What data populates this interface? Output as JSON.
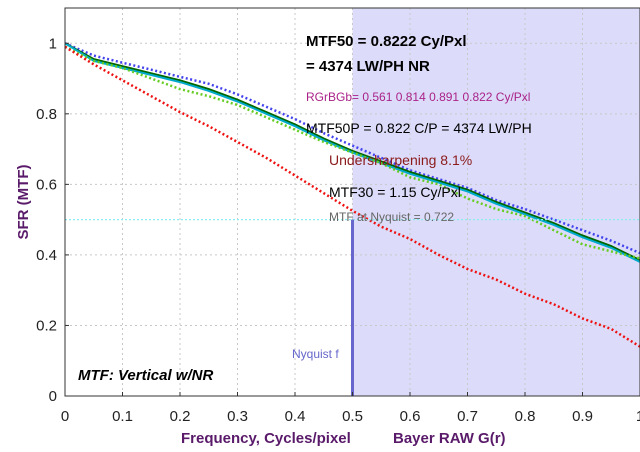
{
  "chart_data": {
    "type": "line",
    "xlabel": "Frequency, Cycles/pixel",
    "xlabel_suffix": "Bayer RAW G(r)",
    "ylabel": "SFR (MTF)",
    "xlim": [
      0,
      1
    ],
    "ylim": [
      0,
      1.1
    ],
    "grid": true,
    "x_ticks": [
      "0",
      "0.1",
      "0.2",
      "0.3",
      "0.4",
      "0.5",
      "0.6",
      "0.7",
      "0.8",
      "0.9",
      "1"
    ],
    "x_tick_values": [
      0,
      0.1,
      0.2,
      0.3,
      0.4,
      0.5,
      0.6,
      0.7,
      0.8,
      0.9,
      1.0
    ],
    "y_ticks": [
      "0",
      "0.2",
      "0.4",
      "0.6",
      "0.8",
      "1"
    ],
    "y_tick_values": [
      0,
      0.2,
      0.4,
      0.6,
      0.8,
      1.0
    ],
    "x": [
      0,
      0.05,
      0.1,
      0.15,
      0.2,
      0.25,
      0.3,
      0.35,
      0.4,
      0.45,
      0.5,
      0.55,
      0.6,
      0.65,
      0.7,
      0.75,
      0.8,
      0.85,
      0.9,
      0.95,
      1.0
    ],
    "series": [
      {
        "name": "Blue",
        "color": "#4444ee",
        "style": "dotted",
        "values": [
          1.0,
          0.965,
          0.945,
          0.925,
          0.905,
          0.885,
          0.855,
          0.82,
          0.785,
          0.745,
          0.71,
          0.675,
          0.64,
          0.615,
          0.59,
          0.555,
          0.53,
          0.5,
          0.47,
          0.44,
          0.405
        ]
      },
      {
        "name": "Green",
        "color": "#006600",
        "style": "solid",
        "values": [
          1.0,
          0.955,
          0.935,
          0.915,
          0.895,
          0.87,
          0.84,
          0.805,
          0.77,
          0.73,
          0.695,
          0.665,
          0.635,
          0.61,
          0.585,
          0.55,
          0.52,
          0.49,
          0.455,
          0.425,
          0.385
        ]
      },
      {
        "name": "Cyan",
        "color": "#00aacc",
        "style": "solid",
        "values": [
          1.0,
          0.95,
          0.93,
          0.91,
          0.89,
          0.865,
          0.835,
          0.8,
          0.765,
          0.725,
          0.69,
          0.66,
          0.63,
          0.605,
          0.58,
          0.545,
          0.515,
          0.485,
          0.45,
          0.42,
          0.38
        ]
      },
      {
        "name": "Yellow-green",
        "color": "#66cc22",
        "style": "dotted",
        "values": [
          0.99,
          0.95,
          0.93,
          0.9,
          0.87,
          0.85,
          0.825,
          0.79,
          0.755,
          0.72,
          0.69,
          0.66,
          0.62,
          0.6,
          0.56,
          0.53,
          0.51,
          0.47,
          0.43,
          0.41,
          0.39
        ]
      },
      {
        "name": "Red",
        "color": "#ee1111",
        "style": "dotted",
        "values": [
          0.99,
          0.94,
          0.895,
          0.85,
          0.805,
          0.765,
          0.72,
          0.675,
          0.625,
          0.575,
          0.525,
          0.48,
          0.445,
          0.4,
          0.36,
          0.33,
          0.29,
          0.26,
          0.22,
          0.19,
          0.14
        ]
      }
    ],
    "nyquist_line": {
      "y": 0.5,
      "color": "#88eeee"
    },
    "nyquist_marker": {
      "x": 0.5,
      "color": "#6666cc",
      "fill": "#dcdcfa",
      "label": "Nyquist f"
    },
    "annotations": {
      "mtf50": "MTF50 = 0.8222 Cy/Pxl",
      "lwph": "= 4374 LW/PH  NR",
      "rgrbgb": "RGrBGb= 0.561 0.814 0.891 0.822 Cy/Pxl",
      "mtf50p": "MTF50P = 0.822 C/P = 4374 LW/PH",
      "undersharpening": "Undersharpening  8.1%",
      "mtf30": "MTF30 = 1.15 Cy/Pxl",
      "mtf_nyquist": "MTF at Nyquist = 0.722",
      "mode": "MTF: Vertical w/NR"
    },
    "colors": {
      "axis_label": "#5a1a6a",
      "rgrbgb": "#aa2288",
      "undersharpening": "#8b1a1a",
      "mtf_nyquist_text": "#666666"
    }
  }
}
